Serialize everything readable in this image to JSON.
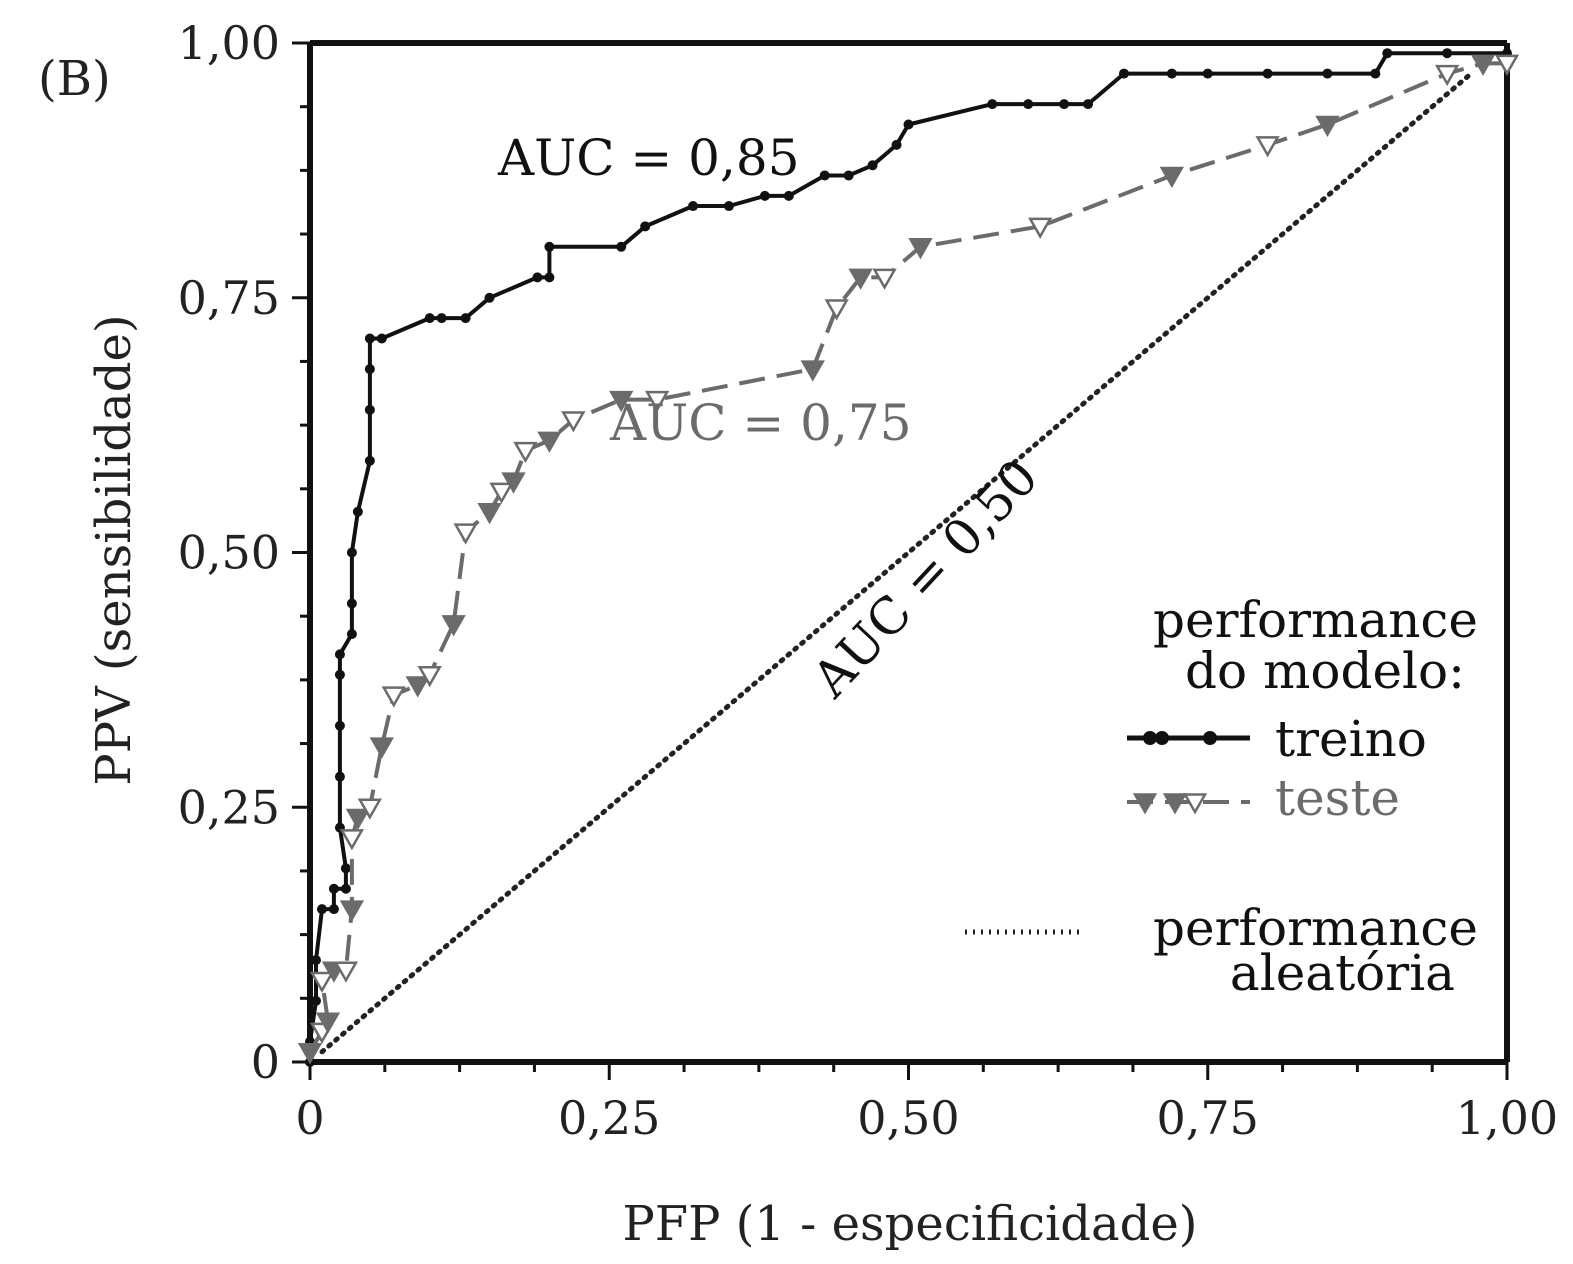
{
  "chart_data": {
    "type": "line",
    "panel_label": "(B)",
    "xlabel": "PFP (1 - especificidade)",
    "ylabel": "PPV (sensibilidade)",
    "xlim": [
      0,
      1
    ],
    "ylim": [
      0,
      1
    ],
    "x_ticks": [
      "0",
      "0,25",
      "0,50",
      "0,75",
      "1,00"
    ],
    "y_ticks": [
      "0",
      "0,25",
      "0,50",
      "0,75",
      "1,00"
    ],
    "grid": false,
    "legend_placement": "bottom-right",
    "legend_title": [
      "performance",
      "do modelo:"
    ],
    "reference_legend": [
      "performance",
      "aleatória"
    ],
    "annotations": [
      {
        "text": "AUC = 0,85",
        "series": "treino"
      },
      {
        "text": "AUC = 0,75",
        "series": "teste"
      },
      {
        "text": "AUC = 0,50",
        "series": "reference"
      }
    ],
    "series": [
      {
        "name": "treino",
        "color": "#111111",
        "style": "solid",
        "marker": "circle",
        "points": [
          [
            0,
            0
          ],
          [
            0,
            0.02
          ],
          [
            0.005,
            0.06
          ],
          [
            0.005,
            0.1
          ],
          [
            0.01,
            0.15
          ],
          [
            0.02,
            0.15
          ],
          [
            0.02,
            0.17
          ],
          [
            0.03,
            0.17
          ],
          [
            0.03,
            0.19
          ],
          [
            0.025,
            0.23
          ],
          [
            0.025,
            0.28
          ],
          [
            0.025,
            0.33
          ],
          [
            0.025,
            0.38
          ],
          [
            0.025,
            0.4
          ],
          [
            0.035,
            0.42
          ],
          [
            0.035,
            0.45
          ],
          [
            0.035,
            0.5
          ],
          [
            0.04,
            0.54
          ],
          [
            0.05,
            0.59
          ],
          [
            0.05,
            0.64
          ],
          [
            0.05,
            0.68
          ],
          [
            0.05,
            0.71
          ],
          [
            0.06,
            0.71
          ],
          [
            0.1,
            0.73
          ],
          [
            0.11,
            0.73
          ],
          [
            0.13,
            0.73
          ],
          [
            0.15,
            0.75
          ],
          [
            0.19,
            0.77
          ],
          [
            0.2,
            0.77
          ],
          [
            0.2,
            0.8
          ],
          [
            0.26,
            0.8
          ],
          [
            0.28,
            0.82
          ],
          [
            0.32,
            0.84
          ],
          [
            0.35,
            0.84
          ],
          [
            0.38,
            0.85
          ],
          [
            0.4,
            0.85
          ],
          [
            0.43,
            0.87
          ],
          [
            0.45,
            0.87
          ],
          [
            0.47,
            0.88
          ],
          [
            0.49,
            0.9
          ],
          [
            0.5,
            0.92
          ],
          [
            0.57,
            0.94
          ],
          [
            0.6,
            0.94
          ],
          [
            0.63,
            0.94
          ],
          [
            0.65,
            0.94
          ],
          [
            0.68,
            0.97
          ],
          [
            0.72,
            0.97
          ],
          [
            0.75,
            0.97
          ],
          [
            0.8,
            0.97
          ],
          [
            0.85,
            0.97
          ],
          [
            0.89,
            0.97
          ],
          [
            0.9,
            0.99
          ],
          [
            0.95,
            0.99
          ],
          [
            1,
            0.99
          ]
        ]
      },
      {
        "name": "teste",
        "color": "#6b6b6b",
        "style": "dashed",
        "marker": "triangle-down",
        "points": [
          [
            0,
            0.01
          ],
          [
            0.01,
            0.03
          ],
          [
            0.015,
            0.04
          ],
          [
            0.01,
            0.08
          ],
          [
            0.02,
            0.09
          ],
          [
            0.03,
            0.09
          ],
          [
            0.035,
            0.15
          ],
          [
            0.035,
            0.22
          ],
          [
            0.04,
            0.24
          ],
          [
            0.05,
            0.25
          ],
          [
            0.06,
            0.31
          ],
          [
            0.07,
            0.36
          ],
          [
            0.09,
            0.37
          ],
          [
            0.1,
            0.38
          ],
          [
            0.12,
            0.43
          ],
          [
            0.13,
            0.52
          ],
          [
            0.15,
            0.54
          ],
          [
            0.16,
            0.56
          ],
          [
            0.17,
            0.57
          ],
          [
            0.18,
            0.6
          ],
          [
            0.2,
            0.61
          ],
          [
            0.22,
            0.63
          ],
          [
            0.26,
            0.65
          ],
          [
            0.29,
            0.65
          ],
          [
            0.42,
            0.68
          ],
          [
            0.44,
            0.74
          ],
          [
            0.46,
            0.77
          ],
          [
            0.48,
            0.77
          ],
          [
            0.51,
            0.8
          ],
          [
            0.61,
            0.82
          ],
          [
            0.72,
            0.87
          ],
          [
            0.8,
            0.9
          ],
          [
            0.85,
            0.92
          ],
          [
            0.95,
            0.97
          ],
          [
            0.98,
            0.98
          ],
          [
            1,
            0.98
          ]
        ]
      },
      {
        "name": "reference",
        "color": "#222222",
        "style": "dotted",
        "marker": "none",
        "points": [
          [
            0.01,
            0.01
          ],
          [
            0.97,
            0.97
          ]
        ]
      }
    ]
  }
}
